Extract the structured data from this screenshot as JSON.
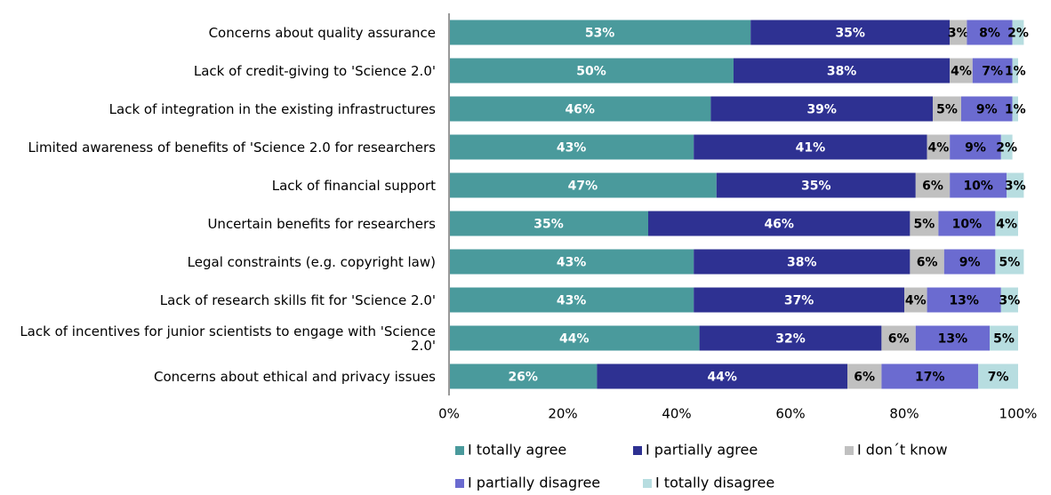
{
  "chart_data": {
    "type": "stacked-bar-horizontal",
    "categories": [
      "Concerns about quality assurance",
      "Lack of credit-giving to 'Science 2.0'",
      "Lack of integration in the existing infrastructures",
      "Limited awareness of benefits of 'Science 2.0 for researchers",
      "Lack of financial support",
      "Uncertain benefits for researchers",
      "Legal constraints (e.g. copyright law)",
      "Lack of research skills fit for 'Science 2.0'",
      "Lack of incentives for junior scientists to engage with 'Science 2.0'",
      "Concerns about ethical and privacy issues"
    ],
    "series": [
      {
        "name": "I totally agree",
        "color": "#4a9a9c",
        "values": [
          53,
          50,
          46,
          43,
          47,
          35,
          43,
          43,
          44,
          26
        ],
        "value_labels": [
          "53%",
          "50%",
          "46%",
          "43%",
          "47%",
          "35%",
          "43%",
          "43%",
          "44%",
          "26%"
        ]
      },
      {
        "name": "I partially agree",
        "color": "#2e3192",
        "values": [
          35,
          38,
          39,
          41,
          35,
          46,
          38,
          37,
          32,
          44
        ],
        "value_labels": [
          "35%",
          "38%",
          "39%",
          "41%",
          "35%",
          "46%",
          "38%",
          "37%",
          "32%",
          "44%"
        ]
      },
      {
        "name": "I don´t know",
        "color": "#c0c0c0",
        "values": [
          3,
          4,
          5,
          4,
          6,
          5,
          6,
          4,
          6,
          6
        ],
        "value_labels": [
          "3%",
          "4%",
          "5%",
          "4%",
          "6%",
          "5%",
          "6%",
          "4%",
          "6%",
          "6%"
        ]
      },
      {
        "name": "I partially disagree",
        "color": "#6b6bd0",
        "values": [
          8,
          7,
          9,
          9,
          10,
          10,
          9,
          13,
          13,
          17
        ],
        "value_labels": [
          "8%",
          "7%",
          "9%",
          "9%",
          "10%",
          "10%",
          "9%",
          "13%",
          "13%",
          "17%"
        ]
      },
      {
        "name": "I totally disagree",
        "color": "#b7dde0",
        "values": [
          2,
          1,
          1,
          2,
          3,
          4,
          5,
          3,
          5,
          7
        ],
        "value_labels": [
          "2%",
          "1%",
          "1%",
          "2%",
          "3%",
          "4%",
          "5%",
          "3%",
          "5%",
          "7%"
        ]
      }
    ],
    "xlim": [
      0,
      100
    ],
    "xticks": [
      {
        "value": 0,
        "label": "0%"
      },
      {
        "value": 20,
        "label": "20%"
      },
      {
        "value": 40,
        "label": "40%"
      },
      {
        "value": 60,
        "label": "60%"
      },
      {
        "value": 80,
        "label": "80%"
      },
      {
        "value": 100,
        "label": "100%"
      }
    ],
    "legend": "bottom"
  }
}
